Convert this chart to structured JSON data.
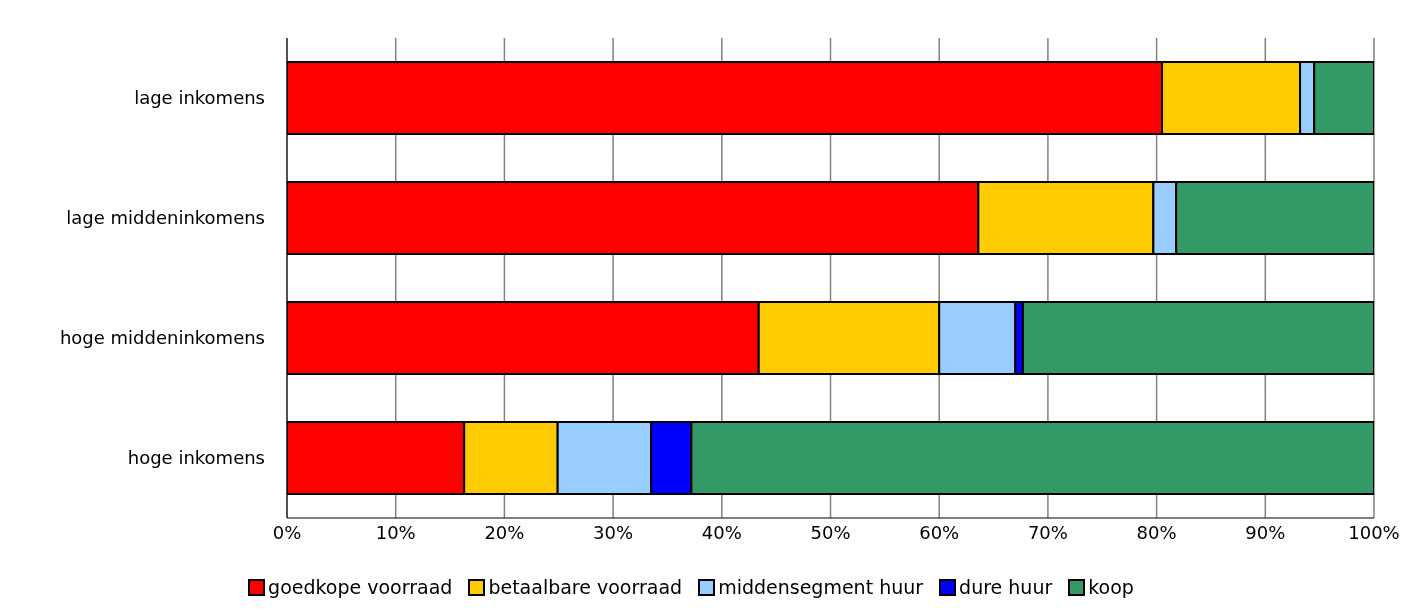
{
  "chart_data": {
    "type": "bar",
    "orientation": "horizontal",
    "stacked": true,
    "categories": [
      "lage inkomens",
      "lage middeninkomens",
      "hoge middeninkomens",
      "hoge inkomens"
    ],
    "series": [
      {
        "name": "goedkope voorraad",
        "color": "#ff0000",
        "values": [
          80.5,
          63.6,
          43.4,
          16.3
        ]
      },
      {
        "name": "betaalbare voorraad",
        "color": "#ffcc00",
        "values": [
          12.7,
          16.1,
          16.6,
          8.6
        ]
      },
      {
        "name": "middensegment huur",
        "color": "#99ccff",
        "values": [
          1.3,
          2.1,
          7.0,
          8.6
        ]
      },
      {
        "name": "dure huur",
        "color": "#0000ff",
        "values": [
          0,
          0,
          0.7,
          3.7
        ]
      },
      {
        "name": "koop",
        "color": "#339966",
        "values": [
          5.5,
          18.2,
          32.3,
          62.8
        ]
      }
    ],
    "xlim": [
      0,
      100
    ],
    "xticks": [
      {
        "value": 0,
        "label": "0%"
      },
      {
        "value": 10,
        "label": "10%"
      },
      {
        "value": 20,
        "label": "20%"
      },
      {
        "value": 30,
        "label": "30%"
      },
      {
        "value": 40,
        "label": "40%"
      },
      {
        "value": 50,
        "label": "50%"
      },
      {
        "value": 60,
        "label": "60%"
      },
      {
        "value": 70,
        "label": "70%"
      },
      {
        "value": 80,
        "label": "80%"
      },
      {
        "value": 90,
        "label": "90%"
      },
      {
        "value": 100,
        "label": "100%"
      }
    ],
    "grid": "x",
    "legend": "bottom"
  }
}
